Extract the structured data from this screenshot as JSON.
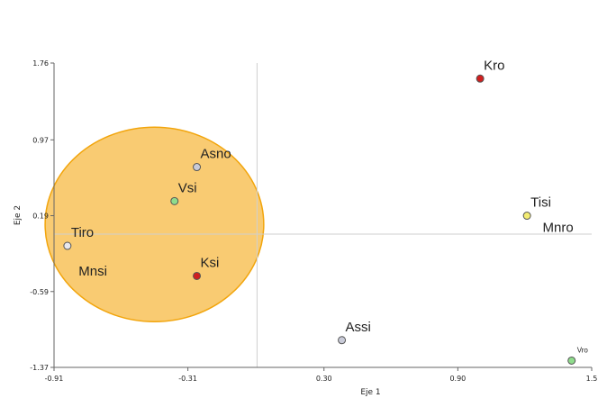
{
  "chart_data": {
    "type": "scatter",
    "xlabel": "Eje 1",
    "ylabel": "Eje 2",
    "xlim": [
      -0.91,
      1.5
    ],
    "ylim": [
      -1.37,
      1.76
    ],
    "x_ticks": [
      {
        "value": -0.91,
        "label": "-0.91"
      },
      {
        "value": -0.31,
        "label": "-0.31"
      },
      {
        "value": 0.3,
        "label": "0.30"
      },
      {
        "value": 0.9,
        "label": "0.90"
      },
      {
        "value": 1.5,
        "label": "1.5"
      }
    ],
    "y_ticks": [
      {
        "value": 1.76,
        "label": "1.76"
      },
      {
        "value": 0.97,
        "label": "0.97"
      },
      {
        "value": 0.19,
        "label": "0.19"
      },
      {
        "value": -0.59,
        "label": "-0.59"
      },
      {
        "value": -1.37,
        "label": "-1.37"
      }
    ],
    "reference_lines": {
      "x": 0.0,
      "y": 0.0
    },
    "highlight_ellipse": {
      "cx": -0.46,
      "cy": 0.1,
      "rx": 0.49,
      "ry": 1.0,
      "fill": "#f9c86a",
      "stroke": "#f2a50c"
    },
    "points": [
      {
        "label": "Kro",
        "x": 1.0,
        "y": 1.6,
        "color": "#d01f1f",
        "label_pos": "above-right"
      },
      {
        "label": "Asno",
        "x": -0.27,
        "y": 0.69,
        "color": "#c9cbd8",
        "label_pos": "above-right"
      },
      {
        "label": "Vsi",
        "x": -0.37,
        "y": 0.34,
        "color": "#8fdc8c",
        "label_pos": "above-right"
      },
      {
        "label": "Tiro",
        "x": -0.85,
        "y": -0.12,
        "color": "#e8e8ee",
        "label_pos": "above-right"
      },
      {
        "label": "Ksi",
        "x": -0.27,
        "y": -0.43,
        "color": "#d01f1f",
        "label_pos": "above-right"
      },
      {
        "label": "Tisi",
        "x": 1.21,
        "y": 0.19,
        "color": "#f3ec73",
        "label_pos": "above-right"
      },
      {
        "label": "Assi",
        "x": 0.38,
        "y": -1.09,
        "color": "#c9cbd8",
        "label_pos": "above-right"
      },
      {
        "label": "Vro",
        "x": 1.41,
        "y": -1.3,
        "color": "#8fdc8c",
        "label_pos": "above-right-small"
      }
    ],
    "text_annotations": [
      {
        "text": "Mnsi",
        "x": -0.8,
        "y": -0.38
      },
      {
        "text": "Mnro",
        "x": 1.28,
        "y": 0.07
      }
    ]
  }
}
